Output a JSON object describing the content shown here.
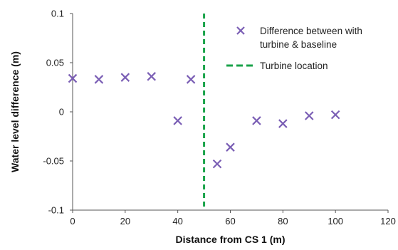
{
  "chart_data": {
    "type": "scatter",
    "title": "",
    "xlabel": "Distance from CS 1 (m)",
    "ylabel": "Water level difference (m)",
    "xlim": [
      0,
      120
    ],
    "ylim": [
      -0.1,
      0.1
    ],
    "x_ticks": [
      0,
      20,
      40,
      60,
      80,
      100,
      120
    ],
    "y_ticks": [
      -0.1,
      -0.05,
      0,
      0.05,
      0.1
    ],
    "x_tick_labels": [
      "0",
      "20",
      "40",
      "60",
      "80",
      "100",
      "120"
    ],
    "y_tick_labels": [
      "-0.1",
      "-0.05",
      "0",
      "0.05",
      "0.1"
    ],
    "grid": false,
    "legend_position": "top-right",
    "series": [
      {
        "name": "Difference between with turbine & baseline",
        "legend_lines": [
          "Difference between with",
          "turbine & baseline"
        ],
        "marker": "x",
        "color": "#7b5fb5",
        "x": [
          0,
          10,
          20,
          30,
          40,
          45,
          55,
          60,
          70,
          80,
          90,
          100
        ],
        "y": [
          0.034,
          0.033,
          0.035,
          0.036,
          -0.009,
          0.033,
          -0.053,
          -0.036,
          -0.009,
          -0.012,
          -0.004,
          -0.003
        ]
      }
    ],
    "vertical_line": {
      "name": "Turbine location",
      "x": 50,
      "color": "#1aa34a",
      "style": "dashed"
    }
  }
}
